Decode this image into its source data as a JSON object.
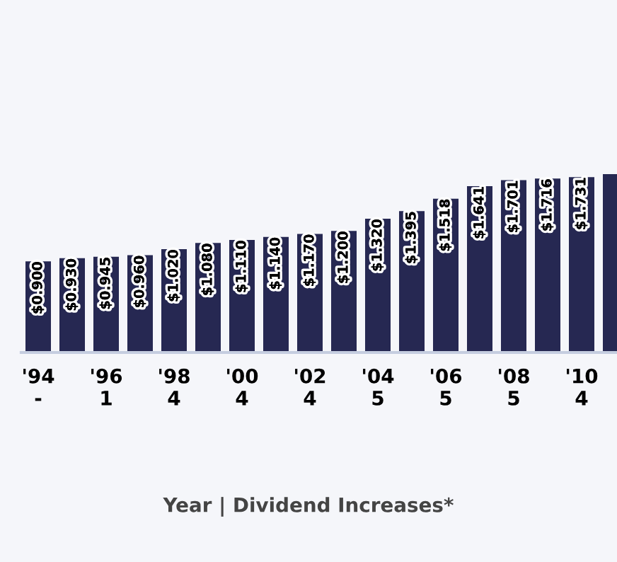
{
  "chart_data": {
    "type": "bar",
    "annotations": [
      "Year | Dividend Increases*"
    ],
    "categories": [
      "'94\n-",
      null,
      "'96\n1",
      null,
      "'98\n4",
      null,
      "'00\n4",
      null,
      "'02\n4",
      null,
      "'04\n5",
      null,
      "'06\n5",
      null,
      "'08\n5",
      null,
      "'10\n4",
      null
    ],
    "values": [
      0.9,
      0.93,
      0.945,
      0.96,
      1.02,
      1.08,
      1.11,
      1.14,
      1.17,
      1.2,
      1.32,
      1.395,
      1.518,
      1.641,
      1.701,
      1.716,
      1.731,
      1.76
    ],
    "value_labels": [
      "$0.900",
      "$0.930",
      "$0.945",
      "$0.960",
      "$1.020",
      "$1.080",
      "$1.110",
      "$1.140",
      "$1.170",
      "$1.200",
      "$1.320",
      "$1.395",
      "$1.518",
      "$1.641",
      "$1.701",
      "$1.716",
      "$1.731",
      null
    ],
    "color": "#262852",
    "grid": false,
    "legend": false
  }
}
